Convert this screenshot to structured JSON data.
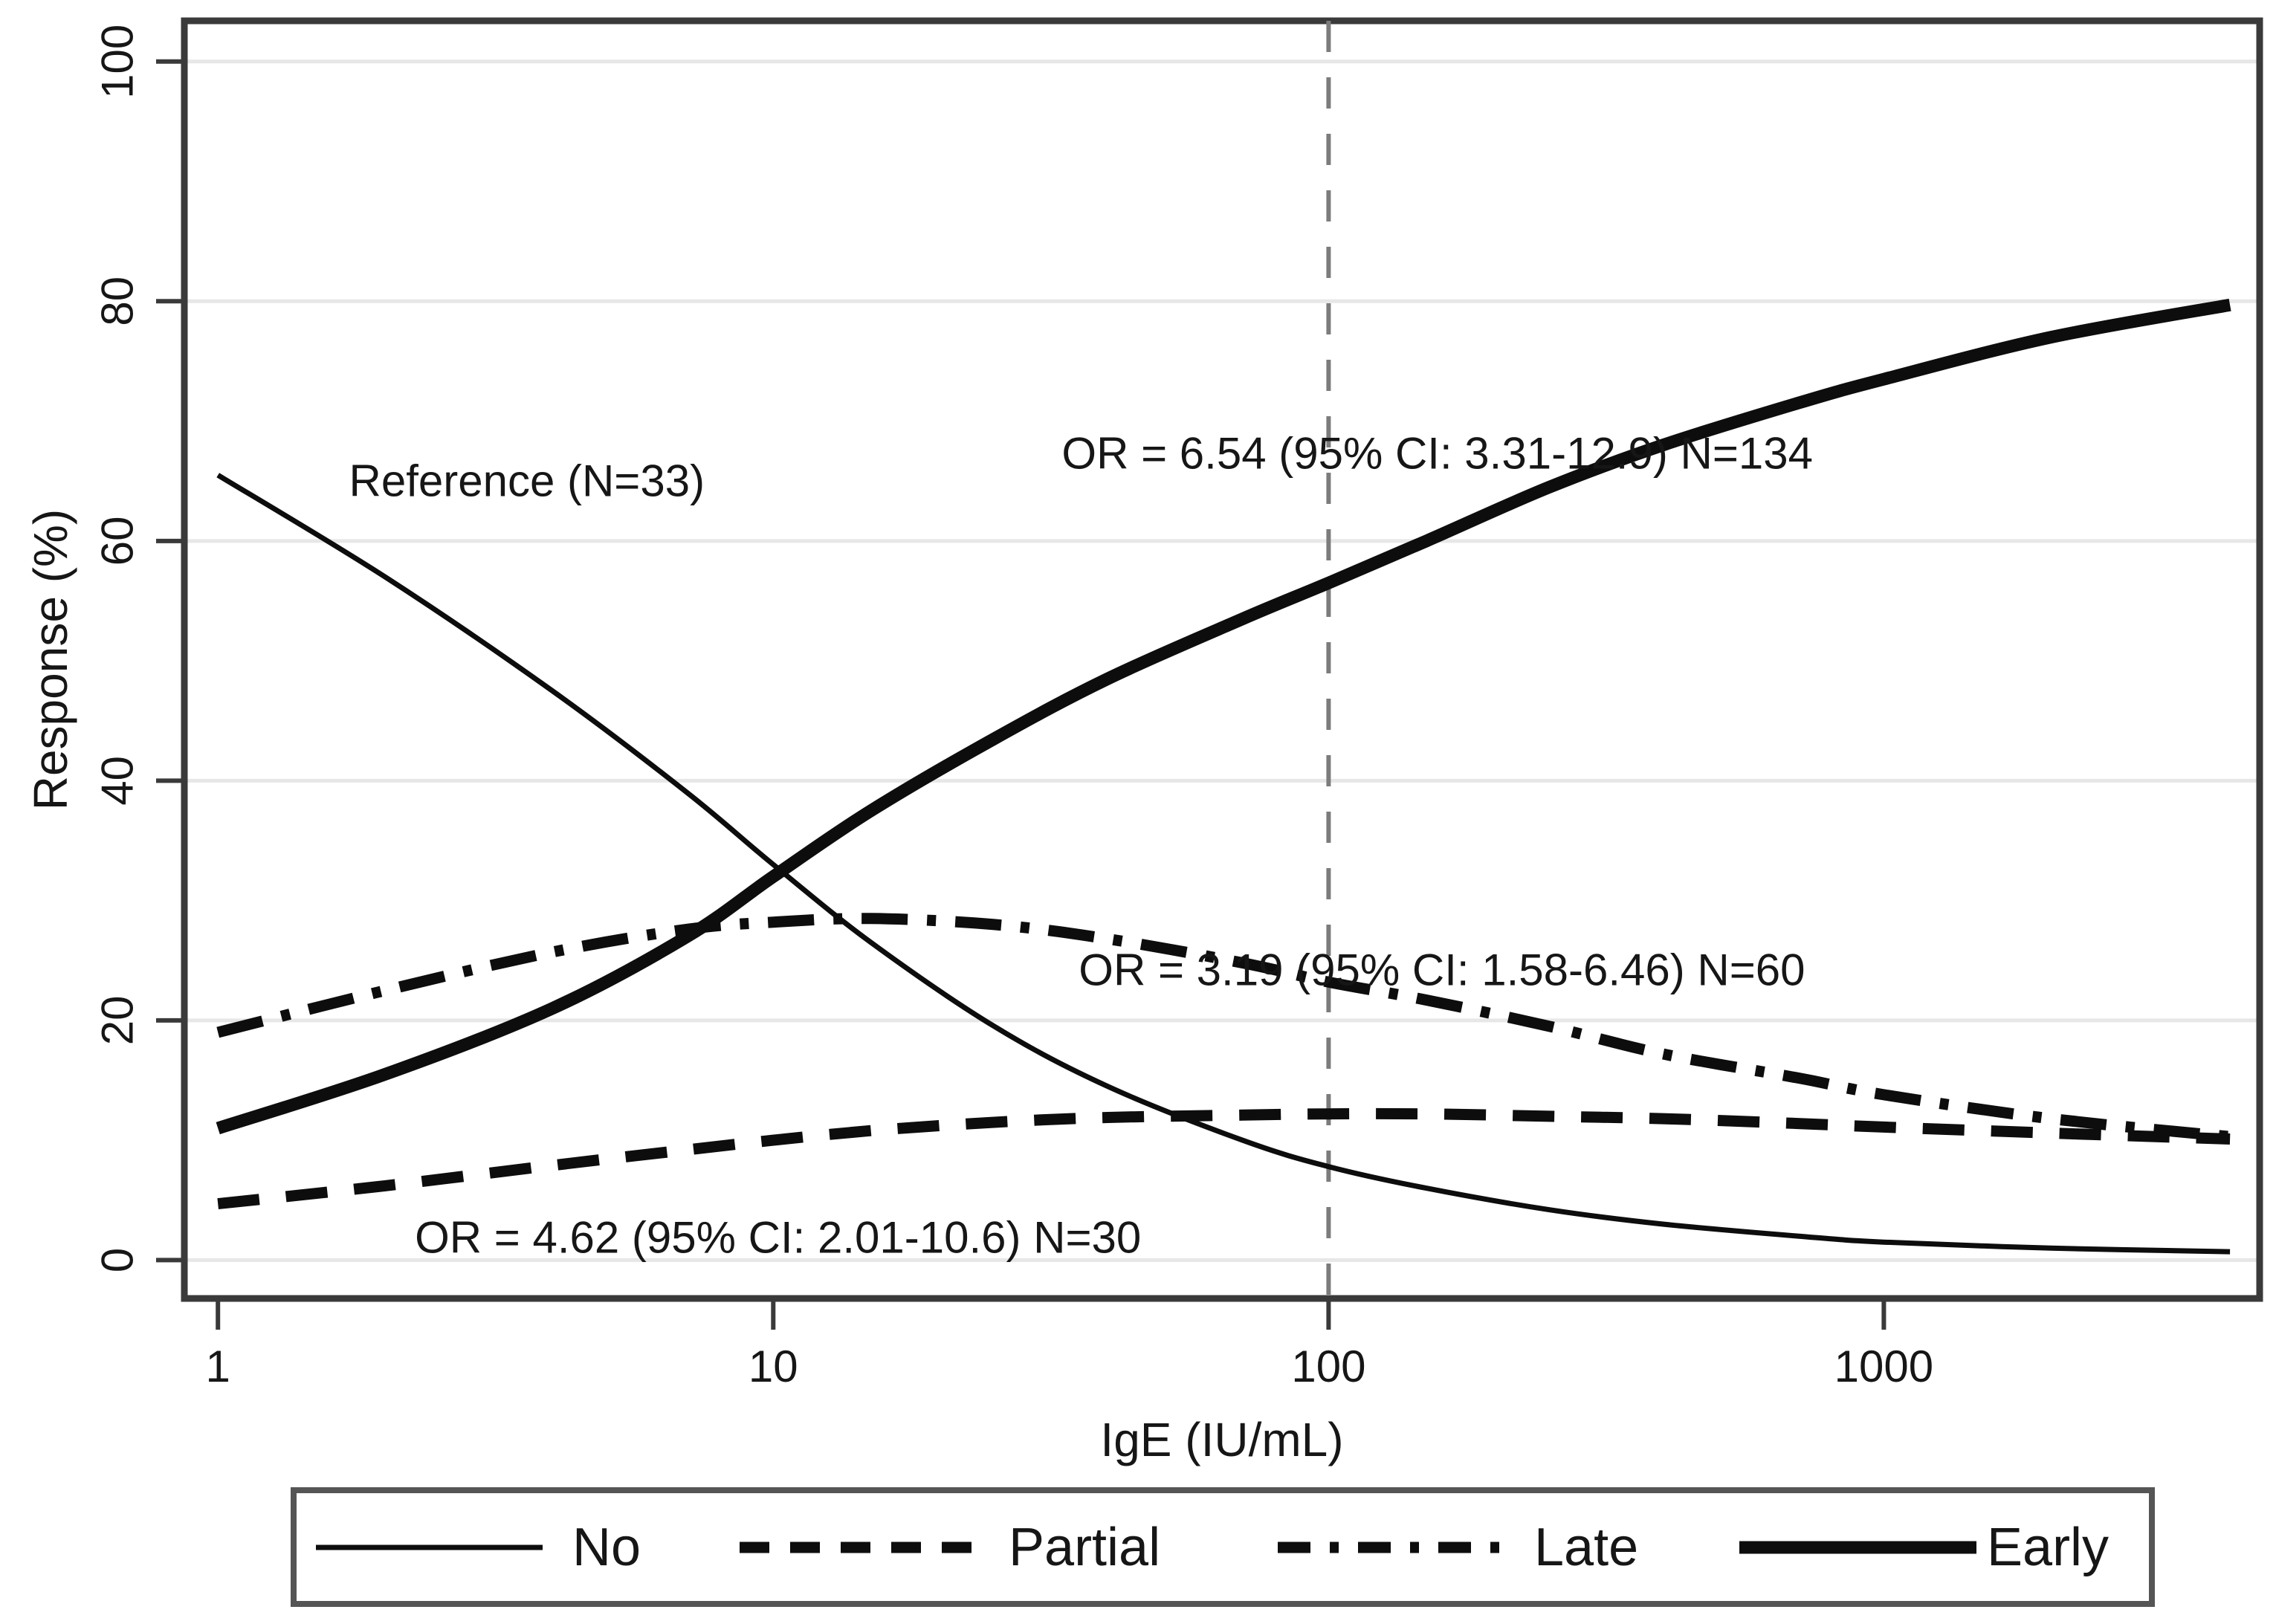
{
  "figure": {
    "background": "#ffffff"
  },
  "chart_data": {
    "type": "line",
    "title": "",
    "xscale": "log",
    "xlabel": "IgE (IU/mL)",
    "ylabel": "Response (%)",
    "xlim": [
      0.87,
      4750
    ],
    "ylim": [
      -3.2,
      103.4
    ],
    "xticks": [
      1,
      10,
      100,
      1000
    ],
    "yticks": [
      0,
      20,
      40,
      60,
      80,
      100
    ],
    "grid": "horizontal-light",
    "refline_x": 100,
    "colors": {
      "line": "#0d0d0d",
      "frame": "#3a3a3a",
      "grid": "#e7e7e7",
      "refline": "#7c7c7c",
      "text": "#161616",
      "legend_border": "#555555"
    },
    "series": [
      {
        "name": "No",
        "style": "solid-thin",
        "x": [
          1,
          2,
          4,
          7,
          10,
          15,
          25,
          40,
          70,
          100,
          150,
          250,
          400,
          700,
          1000,
          2000,
          4200
        ],
        "y": [
          65.5,
          57,
          47.5,
          39,
          33,
          26.5,
          19.5,
          14.5,
          10,
          7.8,
          6,
          4.2,
          3,
          2,
          1.5,
          1,
          0.7
        ]
      },
      {
        "name": "Partial",
        "style": "dashed",
        "x": [
          1,
          2,
          4,
          7,
          10,
          15,
          25,
          40,
          70,
          100,
          150,
          250,
          400,
          700,
          1000,
          2000,
          4200
        ],
        "y": [
          4.7,
          6.2,
          7.9,
          9.2,
          10,
          10.8,
          11.5,
          11.9,
          12.1,
          12.2,
          12.2,
          12,
          11.8,
          11.4,
          11.1,
          10.6,
          10.1
        ]
      },
      {
        "name": "Late",
        "style": "dash-dot",
        "x": [
          1,
          2,
          4,
          7,
          10,
          15,
          25,
          40,
          70,
          100,
          150,
          250,
          400,
          700,
          1000,
          2000,
          4200
        ],
        "y": [
          19,
          22.5,
          25.7,
          27.6,
          28.2,
          28.5,
          28,
          26.8,
          24.8,
          23.2,
          21.7,
          19.5,
          17.2,
          15.2,
          13.8,
          11.8,
          10.3
        ]
      },
      {
        "name": "Early",
        "style": "solid-thick",
        "x": [
          1,
          2,
          4,
          7,
          10,
          15,
          25,
          40,
          70,
          100,
          150,
          250,
          400,
          700,
          1000,
          2000,
          4200
        ],
        "y": [
          11,
          15.5,
          21,
          27,
          32,
          37.5,
          43.5,
          48.5,
          53.5,
          56.5,
          60,
          64.5,
          68,
          71.5,
          73.5,
          77,
          79.7
        ]
      }
    ],
    "annotations": [
      {
        "id": "reference",
        "text": "Reference (N=33)",
        "x": 3.6,
        "y": 65
      },
      {
        "id": "or-early",
        "text": "OR = 6.54 (95% CI: 3.31-12.9) N=134",
        "x": 157,
        "y": 67.3
      },
      {
        "id": "or-late",
        "text": "OR = 3.19 (95% CI: 1.58-6.46) N=60",
        "x": 160,
        "y": 24.2
      },
      {
        "id": "or-partial",
        "text": "OR = 4.62 (95% CI: 2.01-10.6) N=30",
        "x": 10.2,
        "y": 1.9
      }
    ],
    "legend": {
      "position": "bottom",
      "entries": [
        {
          "label": "No",
          "style": "solid-thin"
        },
        {
          "label": "Partial",
          "style": "dashed"
        },
        {
          "label": "Late",
          "style": "dash-dot"
        },
        {
          "label": "Early",
          "style": "solid-thick"
        }
      ]
    }
  }
}
